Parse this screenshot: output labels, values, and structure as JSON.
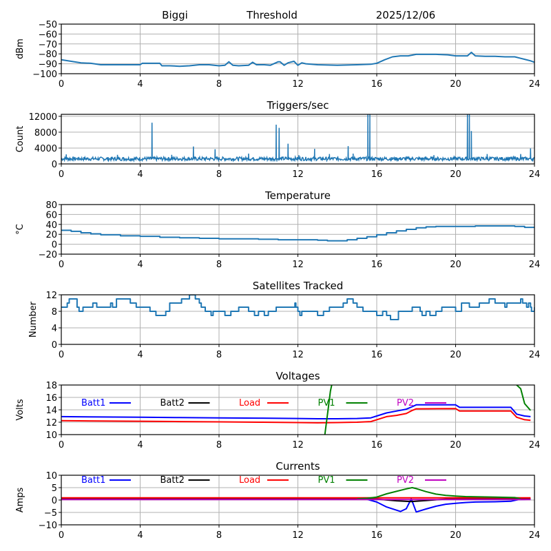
{
  "header": {
    "station": "Biggi",
    "mode": "Threshold",
    "date": "2025/12/06"
  },
  "chart_data": [
    {
      "id": "signal",
      "type": "line",
      "title": "",
      "xlabel": "",
      "ylabel": "dBm",
      "xlim": [
        0,
        24
      ],
      "ylim": [
        -100,
        -50
      ],
      "xticks": [
        0,
        4,
        8,
        12,
        16,
        20,
        24
      ],
      "yticks": [
        -100,
        -90,
        -80,
        -70,
        -60,
        -50
      ],
      "ytick_labels": [
        "−100",
        "−90",
        "−80",
        "−70",
        "−60",
        "−50"
      ],
      "grid": true,
      "series": [
        {
          "name": "signal",
          "color": "#1f77b4",
          "step": false,
          "x": [
            0,
            0.5,
            1,
            1.5,
            2,
            2.5,
            3,
            3.5,
            4,
            4.1,
            4.5,
            5,
            5.1,
            5.5,
            6,
            6.5,
            7,
            7.5,
            8,
            8.3,
            8.5,
            8.7,
            9,
            9.5,
            9.7,
            9.9,
            10.3,
            10.6,
            11,
            11.1,
            11.3,
            11.5,
            11.8,
            12,
            12.2,
            12.4,
            13,
            14,
            15,
            15.7,
            16,
            16.4,
            16.8,
            17.2,
            17.6,
            18,
            19,
            19.6,
            20,
            20.6,
            20.8,
            21,
            21.5,
            22,
            22.5,
            23,
            23.3,
            23.8,
            24
          ],
          "y": [
            -86,
            -87.5,
            -89,
            -89.5,
            -91,
            -91,
            -91,
            -91,
            -91,
            -89.5,
            -89.5,
            -89.5,
            -92,
            -92,
            -92.5,
            -92,
            -91,
            -91,
            -92,
            -91.5,
            -88,
            -91.5,
            -92,
            -91.5,
            -88.5,
            -91,
            -91,
            -91.5,
            -88,
            -88,
            -91.5,
            -89,
            -87.5,
            -91.5,
            -89,
            -90,
            -91,
            -91.5,
            -91,
            -90.5,
            -89.5,
            -86,
            -83,
            -82,
            -82,
            -80.5,
            -80.5,
            -81,
            -82,
            -82,
            -78.5,
            -82,
            -82.5,
            -82.5,
            -83,
            -83,
            -84.5,
            -87,
            -88.5
          ]
        }
      ]
    },
    {
      "id": "triggers",
      "type": "line",
      "title": "Triggers/sec",
      "xlabel": "",
      "ylabel": "Count",
      "xlim": [
        0,
        24
      ],
      "ylim": [
        0,
        12500
      ],
      "xticks": [
        0,
        4,
        8,
        12,
        16,
        20,
        24
      ],
      "yticks": [
        0,
        4000,
        8000,
        12000
      ],
      "ytick_labels": [
        "0",
        "4000",
        "8000",
        "12000"
      ],
      "grid": true,
      "baseline": 1300,
      "spikes": [
        [
          0.25,
          2400
        ],
        [
          2.85,
          2300
        ],
        [
          4.6,
          10400
        ],
        [
          5.6,
          2300
        ],
        [
          6.7,
          4400
        ],
        [
          7.8,
          3700
        ],
        [
          9.5,
          2600
        ],
        [
          10.9,
          9900
        ],
        [
          11.05,
          9100
        ],
        [
          11.5,
          5100
        ],
        [
          12.05,
          2200
        ],
        [
          12.85,
          3800
        ],
        [
          13.6,
          2500
        ],
        [
          14.55,
          4500
        ],
        [
          14.8,
          2600
        ],
        [
          15.55,
          12500
        ],
        [
          15.65,
          12500
        ],
        [
          18.9,
          2200
        ],
        [
          20.6,
          12500
        ],
        [
          20.7,
          12500
        ],
        [
          20.8,
          8300
        ],
        [
          21.6,
          2500
        ],
        [
          23.3,
          2500
        ],
        [
          23.8,
          3900
        ]
      ],
      "series": [
        {
          "name": "triggers",
          "color": "#1f77b4"
        }
      ]
    },
    {
      "id": "temperature",
      "type": "line",
      "title": "Temperature",
      "xlabel": "",
      "ylabel": "°C",
      "xlim": [
        0,
        24
      ],
      "ylim": [
        -20,
        80
      ],
      "xticks": [
        0,
        4,
        8,
        12,
        16,
        20,
        24
      ],
      "yticks": [
        -20,
        0,
        20,
        40,
        60,
        80
      ],
      "ytick_labels": [
        "−20",
        "0",
        "20",
        "40",
        "60",
        "80"
      ],
      "grid": true,
      "series": [
        {
          "name": "temperature",
          "color": "#1f77b4",
          "step": true,
          "x": [
            0,
            0.5,
            1,
            1.5,
            2,
            3,
            4,
            5,
            6,
            7,
            8,
            9,
            10,
            11,
            12,
            13,
            13.5,
            14,
            14.5,
            15,
            15.5,
            16,
            16.5,
            17,
            17.5,
            18,
            18.5,
            19,
            20,
            21,
            22,
            22.5,
            23,
            23.5,
            24
          ],
          "y": [
            28,
            26,
            23,
            21,
            19,
            17,
            16,
            14,
            13,
            12,
            11,
            11,
            10,
            9,
            9,
            8,
            7,
            7,
            9,
            12,
            15,
            19,
            23,
            27,
            30,
            33,
            35,
            36,
            36,
            37,
            37,
            37,
            36,
            34,
            33
          ]
        }
      ]
    },
    {
      "id": "satellites",
      "type": "line",
      "title": "Satellites Tracked",
      "xlabel": "",
      "ylabel": "Number",
      "xlim": [
        0,
        24
      ],
      "ylim": [
        0,
        12
      ],
      "xticks": [
        0,
        4,
        8,
        12,
        16,
        20,
        24
      ],
      "yticks": [
        0,
        4,
        8,
        12
      ],
      "ytick_labels": [
        "0",
        "4",
        "8",
        "12"
      ],
      "grid": true,
      "series": [
        {
          "name": "satellites",
          "color": "#1f77b4",
          "step": true,
          "x": [
            0,
            0.3,
            0.4,
            0.6,
            0.8,
            0.9,
            1.1,
            1.5,
            1.6,
            1.8,
            2.5,
            2.6,
            2.8,
            3.4,
            3.5,
            3.6,
            3.8,
            4.5,
            4.8,
            5.3,
            5.5,
            5.9,
            6.1,
            6.5,
            6.8,
            7,
            7.1,
            7.3,
            7.6,
            7.7,
            8.0,
            8.3,
            8.6,
            8.8,
            9.0,
            9.5,
            9.8,
            10.0,
            10.3,
            10.5,
            10.9,
            11.8,
            11.85,
            11.9,
            12.0,
            12.1,
            12.2,
            12.3,
            13.0,
            13.3,
            13.6,
            13.8,
            14.3,
            14.5,
            14.6,
            14.8,
            15.0,
            15.3,
            15.7,
            16.0,
            16.3,
            16.5,
            16.7,
            17.1,
            17.8,
            18.2,
            18.3,
            18.5,
            18.7,
            19.0,
            19.3,
            19.7,
            20.0,
            20.3,
            20.7,
            21.2,
            21.7,
            22.0,
            22.5,
            22.6,
            23.0,
            23.3,
            23.4,
            23.6,
            23.7,
            23.8,
            23.85,
            24
          ],
          "y": [
            9,
            10,
            11,
            11,
            9,
            8,
            9,
            9,
            10,
            9,
            10,
            9,
            11,
            11,
            10,
            10,
            9,
            8,
            7,
            8,
            10,
            10,
            11,
            12,
            11,
            10,
            9,
            8,
            7,
            8,
            8,
            7,
            8,
            8,
            9,
            8,
            7,
            8,
            7,
            8,
            9,
            9,
            10,
            9,
            8,
            7,
            8,
            8,
            7,
            8,
            9,
            9,
            10,
            11,
            11,
            10,
            9,
            8,
            8,
            7,
            8,
            7,
            6,
            8,
            9,
            8,
            7,
            8,
            7,
            8,
            9,
            9,
            8,
            10,
            9,
            10,
            11,
            10,
            9,
            10,
            10,
            11,
            10,
            9,
            10,
            9,
            8,
            9
          ]
        }
      ]
    },
    {
      "id": "voltages",
      "type": "line",
      "title": "Voltages",
      "xlabel": "",
      "ylabel": "Volts",
      "xlim": [
        0,
        24
      ],
      "ylim": [
        10,
        18
      ],
      "xticks": [
        0,
        4,
        8,
        12,
        16,
        20,
        24
      ],
      "yticks": [
        10,
        12,
        14,
        16,
        18
      ],
      "ytick_labels": [
        "10",
        "12",
        "14",
        "16",
        "18"
      ],
      "grid": true,
      "legend": [
        "Batt1",
        "Batt2",
        "Load",
        "PV1",
        "PV2"
      ],
      "series": [
        {
          "name": "Batt1",
          "color": "#0000ff",
          "x": [
            0,
            2,
            4,
            6,
            8,
            10,
            12,
            13,
            14,
            15,
            15.7,
            16,
            16.5,
            17,
            17.5,
            17.8,
            18,
            20,
            20.2,
            22.8,
            23.1,
            23.5,
            23.8
          ],
          "y": [
            12.9,
            12.85,
            12.8,
            12.75,
            12.7,
            12.65,
            12.6,
            12.55,
            12.55,
            12.6,
            12.7,
            13.0,
            13.5,
            13.8,
            14.1,
            14.5,
            14.8,
            14.8,
            14.4,
            14.4,
            13.3,
            13.0,
            12.9
          ]
        },
        {
          "name": "Batt2",
          "color": "#000000",
          "x": [],
          "y": []
        },
        {
          "name": "Load",
          "color": "#ff0000",
          "x": [
            0,
            2,
            4,
            6,
            8,
            10,
            12,
            13,
            14,
            15,
            15.7,
            16,
            16.5,
            17,
            17.5,
            17.8,
            18,
            20,
            20.2,
            22.8,
            23.1,
            23.5,
            23.8
          ],
          "y": [
            12.25,
            12.2,
            12.15,
            12.1,
            12.05,
            12.0,
            11.95,
            11.9,
            11.95,
            12.0,
            12.1,
            12.4,
            12.9,
            13.1,
            13.4,
            13.9,
            14.15,
            14.2,
            13.8,
            13.8,
            12.8,
            12.4,
            12.3
          ]
        },
        {
          "name": "PV1",
          "color": "#008000",
          "x": [
            13.35,
            13.45,
            13.55,
            13.65,
            13.75,
            22.9,
            23.1,
            23.3,
            23.5,
            23.8
          ],
          "y": [
            9.5,
            12,
            14.5,
            17,
            18.5,
            18.5,
            18,
            17.4,
            15,
            13.9
          ]
        },
        {
          "name": "PV2",
          "color": "#bf00bf",
          "x": [],
          "y": []
        }
      ]
    },
    {
      "id": "currents",
      "type": "line",
      "title": "Currents",
      "xlabel": "",
      "ylabel": "Amps",
      "xlim": [
        0,
        24
      ],
      "ylim": [
        -10,
        10
      ],
      "xticks": [
        0,
        4,
        8,
        12,
        16,
        20,
        24
      ],
      "yticks": [
        -10,
        -5,
        0,
        5,
        10
      ],
      "ytick_labels": [
        "−10",
        "−5",
        "0",
        "5",
        "10"
      ],
      "grid": true,
      "legend": [
        "Batt1",
        "Batt2",
        "Load",
        "PV1",
        "PV2"
      ],
      "series": [
        {
          "name": "Batt1",
          "color": "#0000ff",
          "x": [
            0,
            15.5,
            16,
            16.5,
            17.2,
            17.5,
            17.75,
            18,
            18.5,
            19,
            19.5,
            20,
            20.5,
            21,
            22,
            22.8,
            23.2,
            23.8
          ],
          "y": [
            0.3,
            0.3,
            -0.8,
            -2.8,
            -4.6,
            -3.5,
            0.5,
            -4.8,
            -3.6,
            -2.5,
            -1.7,
            -1.3,
            -1.0,
            -0.8,
            -0.7,
            -0.5,
            0.2,
            0.3
          ]
        },
        {
          "name": "Batt2",
          "color": "#000000",
          "x": [
            0,
            16,
            17,
            17.75,
            18.5,
            19.5,
            23.8
          ],
          "y": [
            0.5,
            0.4,
            -0.3,
            -0.6,
            -0.2,
            0.4,
            0.5
          ]
        },
        {
          "name": "Load",
          "color": "#ff0000",
          "x": [
            0,
            23.8
          ],
          "y": [
            0.9,
            0.9
          ]
        },
        {
          "name": "PV1",
          "color": "#008000",
          "x": [
            15,
            15.5,
            16,
            16.5,
            17,
            17.5,
            17.8,
            18,
            18.5,
            19,
            19.5,
            20,
            20.5,
            21,
            22,
            23,
            23.3
          ],
          "y": [
            0.5,
            0.7,
            1.2,
            2.5,
            3.5,
            4.5,
            5.0,
            4.6,
            3.4,
            2.4,
            1.9,
            1.6,
            1.4,
            1.3,
            1.2,
            1.0,
            0.5
          ]
        },
        {
          "name": "PV2",
          "color": "#bf00bf",
          "x": [
            0,
            23.8
          ],
          "y": [
            0.2,
            0.2
          ]
        }
      ]
    }
  ]
}
